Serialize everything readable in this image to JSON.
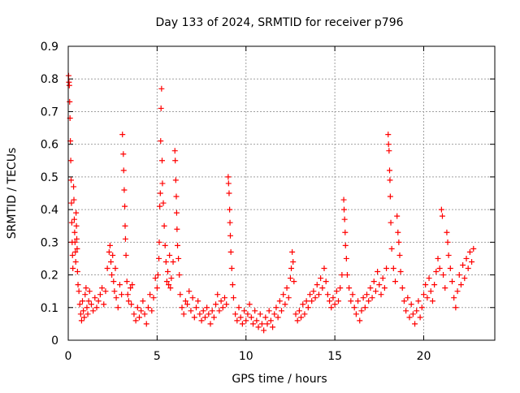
{
  "chart_data": {
    "type": "scatter",
    "title": "Day 133 of 2024, SRMTID for receiver p796",
    "xlabel": "GPS time / hours",
    "ylabel": "SRMTID / TECUs",
    "xlim": [
      0,
      24
    ],
    "ylim": [
      0,
      0.9
    ],
    "xticks": [
      0,
      5,
      10,
      15,
      20
    ],
    "yticks": [
      0,
      0.1,
      0.2,
      0.3,
      0.4,
      0.5,
      0.6,
      0.7,
      0.8,
      0.9
    ],
    "ytick_labels": [
      "0",
      "0.1",
      "0.2",
      "0.3",
      "0.4",
      "0.5",
      "0.6",
      "0.7",
      "0.8",
      "0.9"
    ],
    "xtick_labels": [
      "0",
      "5",
      "10",
      "15",
      "20"
    ],
    "grid": true,
    "marker": "+",
    "series": [
      {
        "name": "SRMTID",
        "color": "#ff0000",
        "points": [
          [
            0.02,
            0.81
          ],
          [
            0.04,
            0.79
          ],
          [
            0.06,
            0.78
          ],
          [
            0.08,
            0.73
          ],
          [
            0.1,
            0.68
          ],
          [
            0.12,
            0.61
          ],
          [
            0.14,
            0.55
          ],
          [
            0.16,
            0.49
          ],
          [
            0.18,
            0.42
          ],
          [
            0.2,
            0.36
          ],
          [
            0.22,
            0.3
          ],
          [
            0.24,
            0.26
          ],
          [
            0.26,
            0.22
          ],
          [
            0.3,
            0.47
          ],
          [
            0.32,
            0.43
          ],
          [
            0.34,
            0.37
          ],
          [
            0.36,
            0.33
          ],
          [
            0.38,
            0.3
          ],
          [
            0.4,
            0.27
          ],
          [
            0.42,
            0.24
          ],
          [
            0.44,
            0.39
          ],
          [
            0.46,
            0.35
          ],
          [
            0.48,
            0.31
          ],
          [
            0.5,
            0.28
          ],
          [
            0.52,
            0.21
          ],
          [
            0.55,
            0.17
          ],
          [
            0.6,
            0.15
          ],
          [
            0.65,
            0.11
          ],
          [
            0.7,
            0.08
          ],
          [
            0.75,
            0.06
          ],
          [
            0.8,
            0.12
          ],
          [
            0.85,
            0.09
          ],
          [
            0.9,
            0.07
          ],
          [
            0.95,
            0.14
          ],
          [
            1.0,
            0.16
          ],
          [
            1.05,
            0.1
          ],
          [
            1.1,
            0.08
          ],
          [
            1.15,
            0.12
          ],
          [
            1.2,
            0.15
          ],
          [
            1.3,
            0.11
          ],
          [
            1.4,
            0.09
          ],
          [
            1.5,
            0.13
          ],
          [
            1.6,
            0.1
          ],
          [
            1.7,
            0.12
          ],
          [
            1.8,
            0.14
          ],
          [
            1.9,
            0.16
          ],
          [
            2.0,
            0.11
          ],
          [
            2.1,
            0.15
          ],
          [
            2.2,
            0.22
          ],
          [
            2.3,
            0.27
          ],
          [
            2.35,
            0.29
          ],
          [
            2.4,
            0.24
          ],
          [
            2.45,
            0.2
          ],
          [
            2.5,
            0.26
          ],
          [
            2.55,
            0.18
          ],
          [
            2.6,
            0.15
          ],
          [
            2.65,
            0.22
          ],
          [
            2.7,
            0.13
          ],
          [
            2.8,
            0.1
          ],
          [
            2.9,
            0.17
          ],
          [
            3.0,
            0.14
          ],
          [
            3.05,
            0.63
          ],
          [
            3.1,
            0.57
          ],
          [
            3.12,
            0.52
          ],
          [
            3.15,
            0.46
          ],
          [
            3.18,
            0.41
          ],
          [
            3.2,
            0.35
          ],
          [
            3.22,
            0.31
          ],
          [
            3.25,
            0.26
          ],
          [
            3.3,
            0.18
          ],
          [
            3.35,
            0.14
          ],
          [
            3.4,
            0.12
          ],
          [
            3.5,
            0.16
          ],
          [
            3.55,
            0.11
          ],
          [
            3.6,
            0.17
          ],
          [
            3.7,
            0.08
          ],
          [
            3.8,
            0.06
          ],
          [
            3.9,
            0.1
          ],
          [
            4.0,
            0.07
          ],
          [
            4.1,
            0.09
          ],
          [
            4.2,
            0.12
          ],
          [
            4.3,
            0.08
          ],
          [
            4.4,
            0.05
          ],
          [
            4.5,
            0.1
          ],
          [
            4.6,
            0.14
          ],
          [
            4.7,
            0.09
          ],
          [
            4.8,
            0.13
          ],
          [
            4.9,
            0.19
          ],
          [
            5.0,
            0.16
          ],
          [
            5.05,
            0.2
          ],
          [
            5.1,
            0.25
          ],
          [
            5.12,
            0.3
          ],
          [
            5.15,
            0.41
          ],
          [
            5.18,
            0.45
          ],
          [
            5.2,
            0.61
          ],
          [
            5.22,
            0.71
          ],
          [
            5.25,
            0.77
          ],
          [
            5.28,
            0.55
          ],
          [
            5.3,
            0.48
          ],
          [
            5.35,
            0.42
          ],
          [
            5.4,
            0.35
          ],
          [
            5.45,
            0.29
          ],
          [
            5.5,
            0.24
          ],
          [
            5.55,
            0.18
          ],
          [
            5.6,
            0.21
          ],
          [
            5.65,
            0.17
          ],
          [
            5.7,
            0.26
          ],
          [
            5.75,
            0.16
          ],
          [
            5.8,
            0.19
          ],
          [
            5.9,
            0.24
          ],
          [
            6.0,
            0.58
          ],
          [
            6.02,
            0.55
          ],
          [
            6.05,
            0.49
          ],
          [
            6.08,
            0.44
          ],
          [
            6.1,
            0.39
          ],
          [
            6.12,
            0.34
          ],
          [
            6.15,
            0.29
          ],
          [
            6.2,
            0.25
          ],
          [
            6.25,
            0.2
          ],
          [
            6.3,
            0.14
          ],
          [
            6.4,
            0.1
          ],
          [
            6.5,
            0.08
          ],
          [
            6.6,
            0.12
          ],
          [
            6.7,
            0.11
          ],
          [
            6.8,
            0.15
          ],
          [
            6.9,
            0.09
          ],
          [
            7.0,
            0.13
          ],
          [
            7.1,
            0.07
          ],
          [
            7.2,
            0.1
          ],
          [
            7.3,
            0.12
          ],
          [
            7.4,
            0.08
          ],
          [
            7.5,
            0.06
          ],
          [
            7.6,
            0.09
          ],
          [
            7.7,
            0.07
          ],
          [
            7.8,
            0.1
          ],
          [
            7.9,
            0.08
          ],
          [
            8.0,
            0.05
          ],
          [
            8.1,
            0.09
          ],
          [
            8.2,
            0.07
          ],
          [
            8.3,
            0.11
          ],
          [
            8.4,
            0.14
          ],
          [
            8.5,
            0.09
          ],
          [
            8.6,
            0.12
          ],
          [
            8.7,
            0.1
          ],
          [
            8.8,
            0.13
          ],
          [
            8.9,
            0.11
          ],
          [
            9.0,
            0.5
          ],
          [
            9.02,
            0.48
          ],
          [
            9.05,
            0.45
          ],
          [
            9.08,
            0.4
          ],
          [
            9.1,
            0.36
          ],
          [
            9.12,
            0.32
          ],
          [
            9.15,
            0.27
          ],
          [
            9.2,
            0.22
          ],
          [
            9.25,
            0.17
          ],
          [
            9.3,
            0.13
          ],
          [
            9.4,
            0.08
          ],
          [
            9.5,
            0.06
          ],
          [
            9.6,
            0.1
          ],
          [
            9.7,
            0.07
          ],
          [
            9.8,
            0.05
          ],
          [
            9.9,
            0.09
          ],
          [
            10.0,
            0.06
          ],
          [
            10.1,
            0.08
          ],
          [
            10.2,
            0.11
          ],
          [
            10.3,
            0.07
          ],
          [
            10.4,
            0.05
          ],
          [
            10.5,
            0.09
          ],
          [
            10.6,
            0.06
          ],
          [
            10.7,
            0.04
          ],
          [
            10.8,
            0.08
          ],
          [
            10.9,
            0.05
          ],
          [
            11.0,
            0.03
          ],
          [
            11.1,
            0.07
          ],
          [
            11.2,
            0.05
          ],
          [
            11.3,
            0.09
          ],
          [
            11.4,
            0.06
          ],
          [
            11.5,
            0.04
          ],
          [
            11.6,
            0.08
          ],
          [
            11.7,
            0.1
          ],
          [
            11.8,
            0.07
          ],
          [
            11.9,
            0.12
          ],
          [
            12.0,
            0.09
          ],
          [
            12.1,
            0.14
          ],
          [
            12.2,
            0.11
          ],
          [
            12.3,
            0.16
          ],
          [
            12.4,
            0.13
          ],
          [
            12.5,
            0.19
          ],
          [
            12.55,
            0.22
          ],
          [
            12.6,
            0.27
          ],
          [
            12.65,
            0.24
          ],
          [
            12.7,
            0.18
          ],
          [
            12.8,
            0.08
          ],
          [
            12.9,
            0.06
          ],
          [
            13.0,
            0.09
          ],
          [
            13.1,
            0.07
          ],
          [
            13.2,
            0.11
          ],
          [
            13.3,
            0.08
          ],
          [
            13.4,
            0.12
          ],
          [
            13.5,
            0.1
          ],
          [
            13.6,
            0.14
          ],
          [
            13.7,
            0.12
          ],
          [
            13.8,
            0.15
          ],
          [
            13.9,
            0.13
          ],
          [
            14.0,
            0.17
          ],
          [
            14.1,
            0.14
          ],
          [
            14.2,
            0.19
          ],
          [
            14.3,
            0.16
          ],
          [
            14.4,
            0.22
          ],
          [
            14.5,
            0.18
          ],
          [
            14.6,
            0.14
          ],
          [
            14.7,
            0.12
          ],
          [
            14.8,
            0.1
          ],
          [
            14.9,
            0.13
          ],
          [
            15.0,
            0.11
          ],
          [
            15.1,
            0.15
          ],
          [
            15.2,
            0.12
          ],
          [
            15.3,
            0.16
          ],
          [
            15.4,
            0.2
          ],
          [
            15.5,
            0.43
          ],
          [
            15.52,
            0.4
          ],
          [
            15.55,
            0.37
          ],
          [
            15.58,
            0.33
          ],
          [
            15.6,
            0.29
          ],
          [
            15.65,
            0.25
          ],
          [
            15.7,
            0.2
          ],
          [
            15.8,
            0.16
          ],
          [
            15.9,
            0.12
          ],
          [
            16.0,
            0.14
          ],
          [
            16.1,
            0.1
          ],
          [
            16.2,
            0.08
          ],
          [
            16.3,
            0.12
          ],
          [
            16.4,
            0.06
          ],
          [
            16.5,
            0.09
          ],
          [
            16.6,
            0.13
          ],
          [
            16.7,
            0.1
          ],
          [
            16.8,
            0.14
          ],
          [
            16.9,
            0.12
          ],
          [
            17.0,
            0.16
          ],
          [
            17.1,
            0.13
          ],
          [
            17.2,
            0.18
          ],
          [
            17.3,
            0.15
          ],
          [
            17.4,
            0.21
          ],
          [
            17.5,
            0.17
          ],
          [
            17.6,
            0.14
          ],
          [
            17.7,
            0.19
          ],
          [
            17.8,
            0.16
          ],
          [
            17.9,
            0.22
          ],
          [
            18.0,
            0.63
          ],
          [
            18.02,
            0.6
          ],
          [
            18.05,
            0.58
          ],
          [
            18.08,
            0.52
          ],
          [
            18.1,
            0.49
          ],
          [
            18.12,
            0.44
          ],
          [
            18.15,
            0.36
          ],
          [
            18.2,
            0.28
          ],
          [
            18.3,
            0.22
          ],
          [
            18.4,
            0.18
          ],
          [
            18.5,
            0.38
          ],
          [
            18.55,
            0.33
          ],
          [
            18.6,
            0.3
          ],
          [
            18.65,
            0.26
          ],
          [
            18.7,
            0.21
          ],
          [
            18.8,
            0.16
          ],
          [
            18.9,
            0.12
          ],
          [
            19.0,
            0.09
          ],
          [
            19.1,
            0.13
          ],
          [
            19.2,
            0.07
          ],
          [
            19.3,
            0.11
          ],
          [
            19.4,
            0.08
          ],
          [
            19.5,
            0.05
          ],
          [
            19.6,
            0.09
          ],
          [
            19.7,
            0.12
          ],
          [
            19.8,
            0.07
          ],
          [
            19.9,
            0.1
          ],
          [
            20.0,
            0.14
          ],
          [
            20.1,
            0.17
          ],
          [
            20.2,
            0.13
          ],
          [
            20.3,
            0.19
          ],
          [
            20.4,
            0.15
          ],
          [
            20.5,
            0.12
          ],
          [
            20.6,
            0.17
          ],
          [
            20.7,
            0.21
          ],
          [
            20.8,
            0.25
          ],
          [
            20.9,
            0.22
          ],
          [
            21.0,
            0.4
          ],
          [
            21.05,
            0.38
          ],
          [
            21.1,
            0.2
          ],
          [
            21.2,
            0.16
          ],
          [
            21.3,
            0.33
          ],
          [
            21.35,
            0.3
          ],
          [
            21.4,
            0.26
          ],
          [
            21.5,
            0.22
          ],
          [
            21.6,
            0.18
          ],
          [
            21.7,
            0.13
          ],
          [
            21.8,
            0.1
          ],
          [
            21.9,
            0.15
          ],
          [
            22.0,
            0.2
          ],
          [
            22.1,
            0.17
          ],
          [
            22.2,
            0.23
          ],
          [
            22.3,
            0.19
          ],
          [
            22.4,
            0.25
          ],
          [
            22.5,
            0.22
          ],
          [
            22.6,
            0.27
          ],
          [
            22.7,
            0.24
          ],
          [
            22.8,
            0.28
          ]
        ]
      }
    ]
  }
}
